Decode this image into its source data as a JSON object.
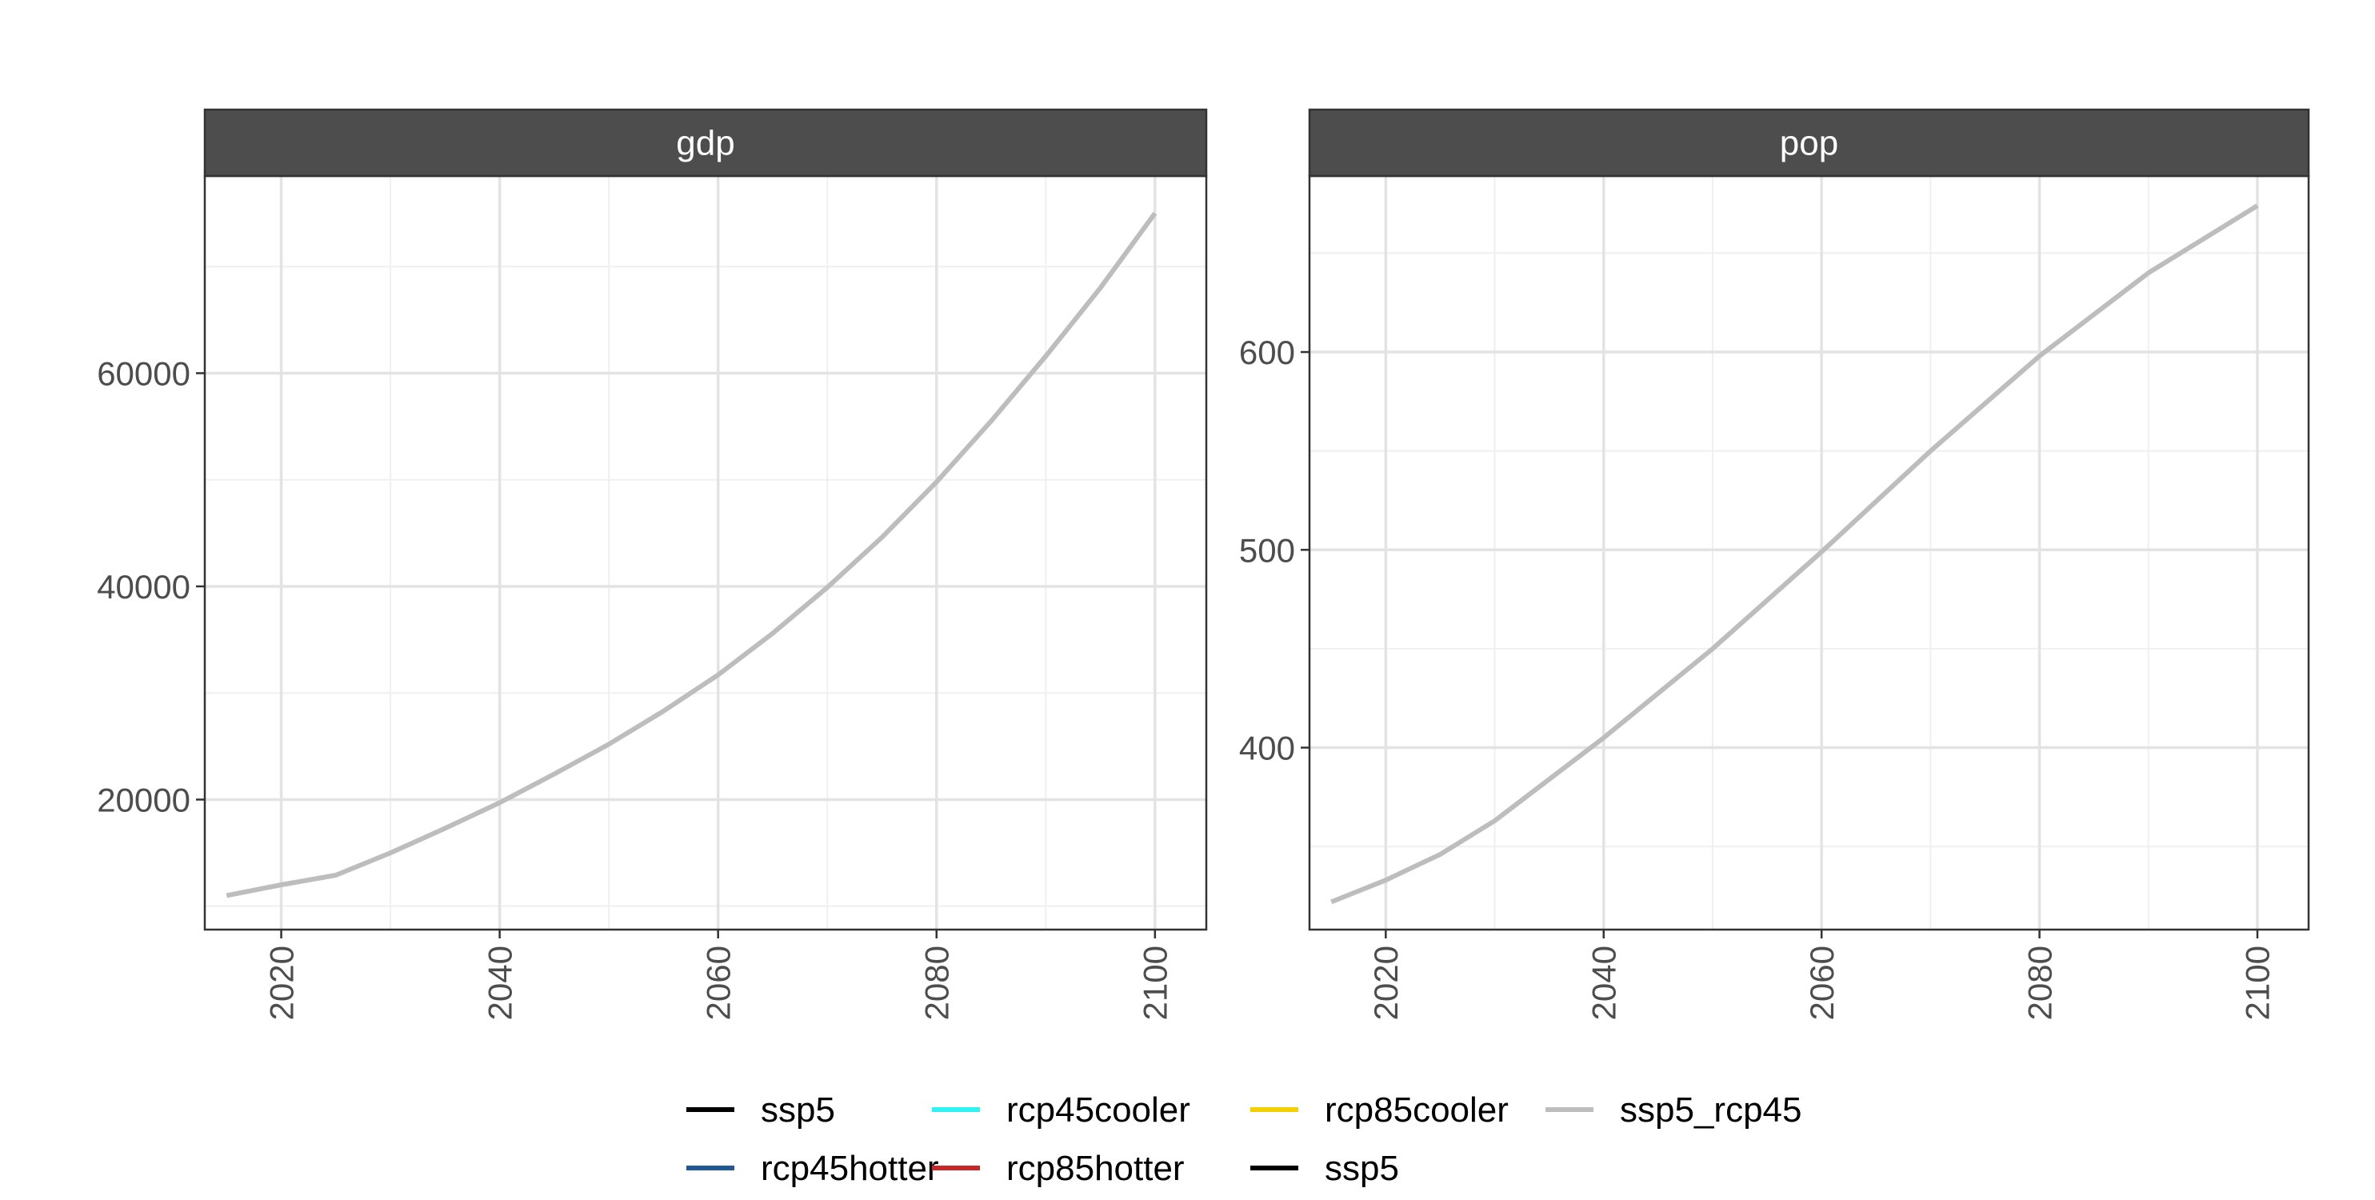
{
  "chart_data": {
    "type": "line",
    "theme": "faceted line chart, white panels, light grey grid, dark grey facet strips",
    "x_ticks": [
      2020,
      2040,
      2060,
      2080,
      2100
    ],
    "x_tick_rotation": "vertical",
    "legend_position": "bottom",
    "legend": [
      {
        "name": "ssp5",
        "color": "#000000"
      },
      {
        "name": "rcp45hotter",
        "color": "#1f5a96"
      },
      {
        "name": "rcp45cooler",
        "color": "#2ff2f2"
      },
      {
        "name": "rcp85hotter",
        "color": "#c62828"
      },
      {
        "name": "rcp85cooler",
        "color": "#f5d000"
      },
      {
        "name": "ssp5",
        "color": "#000000"
      },
      {
        "name": "ssp5_rcp45",
        "color": "#bdbdbd"
      }
    ],
    "panels": [
      {
        "title": "gdp",
        "xlim": [
          2013,
          2104.7
        ],
        "ylim": [
          7800,
          78500
        ],
        "y_ticks": [
          20000,
          40000,
          60000
        ],
        "y_minor": [
          10000,
          30000,
          50000,
          70000
        ],
        "series": [
          {
            "name": "ssp5_rcp45",
            "color": "#bdbdbd",
            "x": [
              2015,
              2020,
              2025,
              2030,
              2035,
              2040,
              2045,
              2050,
              2055,
              2060,
              2065,
              2070,
              2075,
              2080,
              2085,
              2090,
              2095,
              2100
            ],
            "y": [
              11000,
              12000,
              12900,
              15000,
              17300,
              19700,
              22400,
              25200,
              28300,
              31700,
              35600,
              39900,
              44600,
              49800,
              55500,
              61600,
              68000,
              75000
            ]
          }
        ]
      },
      {
        "title": "pop",
        "xlim": [
          2013,
          2104.7
        ],
        "ylim": [
          308,
          689
        ],
        "y_ticks": [
          400,
          500,
          600
        ],
        "y_minor": [
          350,
          450,
          550,
          650
        ],
        "series": [
          {
            "name": "ssp5_rcp45",
            "color": "#bdbdbd",
            "x": [
              2015,
              2020,
              2025,
              2030,
              2040,
              2050,
              2060,
              2070,
              2080,
              2090,
              2100
            ],
            "y": [
              322,
              333,
              346,
              363,
              405,
              450,
              499,
              550,
              598,
              640,
              674
            ]
          }
        ]
      }
    ]
  }
}
